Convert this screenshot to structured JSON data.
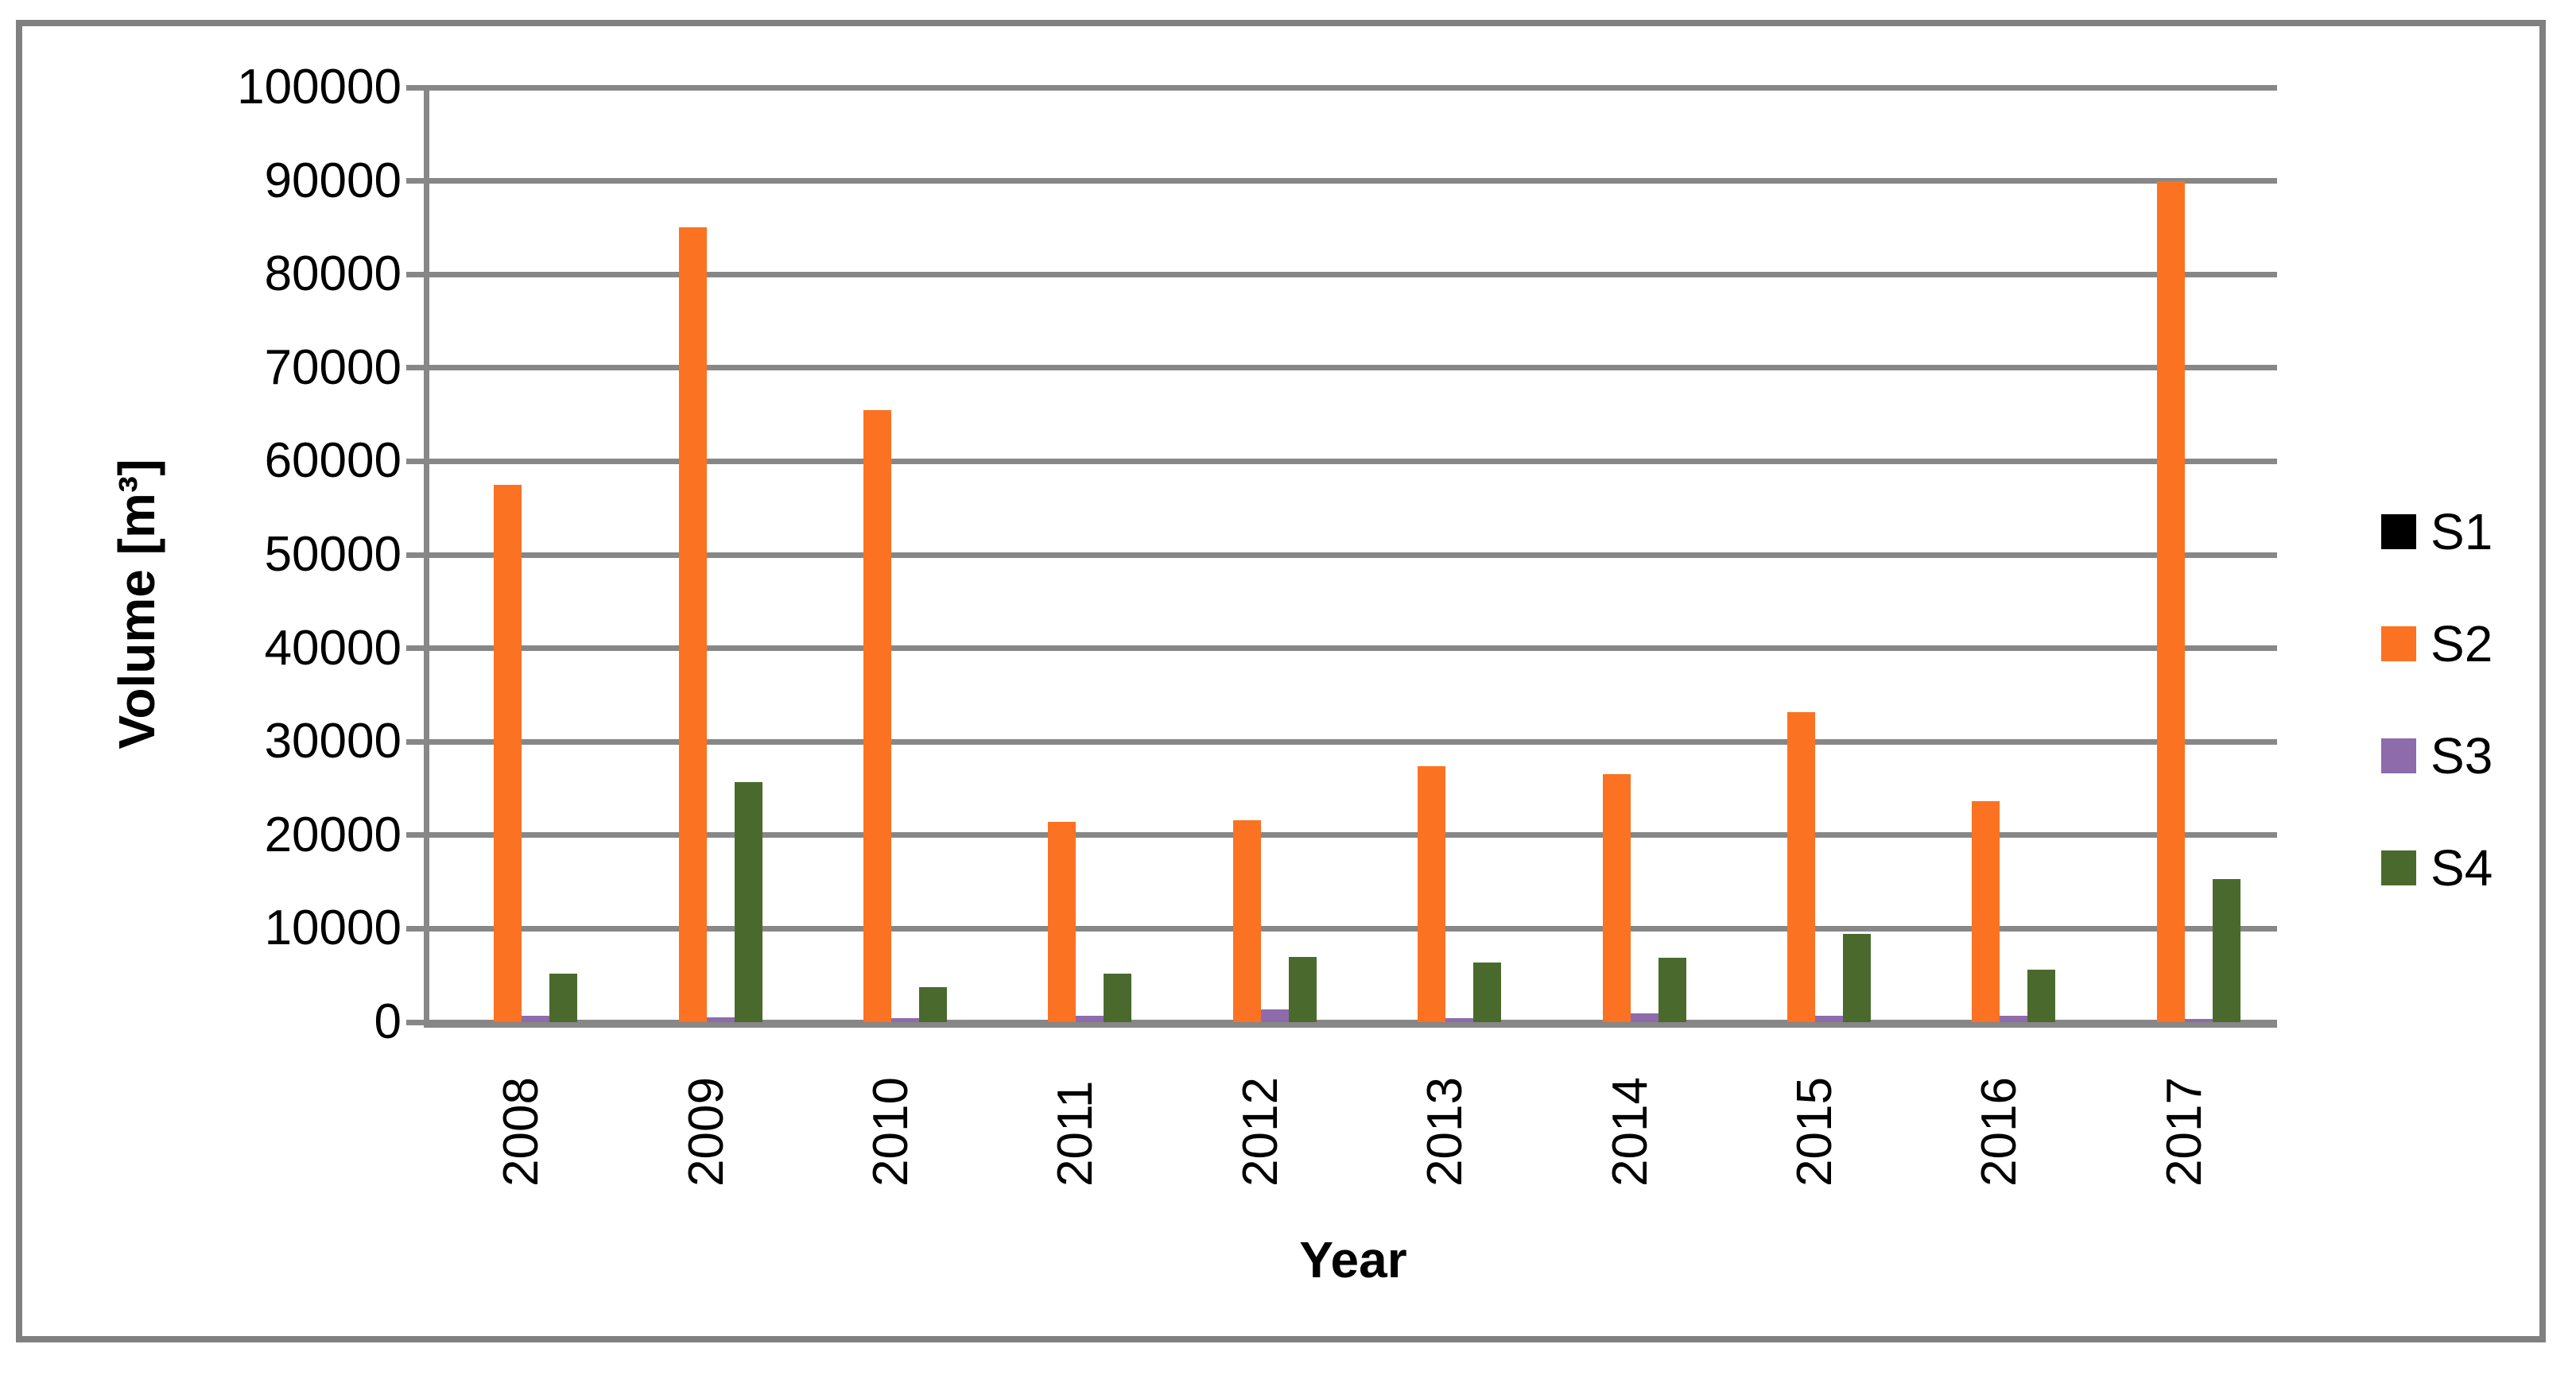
{
  "chart_data": {
    "type": "bar",
    "title": "",
    "xlabel": "Year",
    "ylabel": "Volume [m³]",
    "categories": [
      "2008",
      "2009",
      "2010",
      "2011",
      "2012",
      "2013",
      "2014",
      "2015",
      "2016",
      "2017"
    ],
    "series": [
      {
        "name": "S1",
        "color": "#000000",
        "values": [
          0,
          0,
          0,
          0,
          0,
          0,
          0,
          0,
          0,
          0
        ]
      },
      {
        "name": "S2",
        "color": "#FB7222",
        "values": [
          57500,
          85000,
          65500,
          21400,
          21600,
          27400,
          26500,
          33200,
          23600,
          90000
        ]
      },
      {
        "name": "S3",
        "color": "#8E6BAB",
        "values": [
          700,
          500,
          400,
          700,
          1400,
          400,
          900,
          700,
          700,
          300
        ]
      },
      {
        "name": "S4",
        "color": "#4A6A2D",
        "values": [
          5200,
          25700,
          3700,
          5200,
          7000,
          6400,
          6900,
          9400,
          5600,
          15300
        ]
      }
    ],
    "ylim": [
      0,
      100000
    ],
    "yticks": [
      "0",
      "10000",
      "20000",
      "30000",
      "40000",
      "50000",
      "60000",
      "70000",
      "80000",
      "90000",
      "100000"
    ],
    "grid": true,
    "legend_position": "right",
    "legend_entries": [
      "S1",
      "S2",
      "S3",
      "S4"
    ],
    "gridline_color": "#878787",
    "axis_color": "#878787",
    "frame_color": "#808080",
    "text_color": "#000000",
    "background": "#FFFFFF"
  }
}
